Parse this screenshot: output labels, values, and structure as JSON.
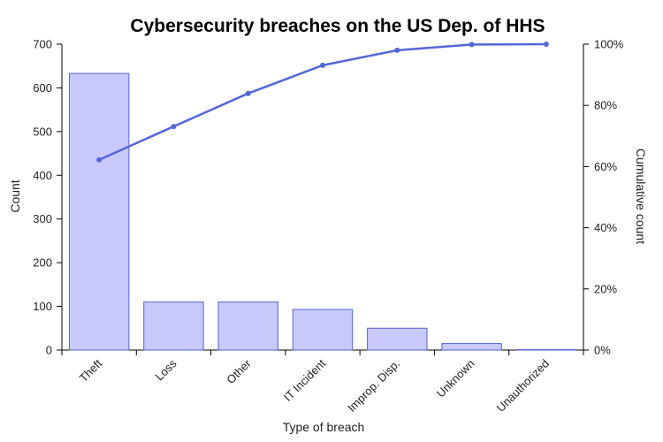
{
  "chart_data": {
    "type": "bar",
    "title": "Cybersecurity breaches on the US Dep. of HHS",
    "xlabel": "Type of breach",
    "ylabel": "Count",
    "y2label": "Cumulative count",
    "categories": [
      "Theft",
      "Loss",
      "Other",
      "IT Incident",
      "Improp. Disp.",
      "Unknown",
      "Unauthorized"
    ],
    "series": [
      {
        "type": "bar",
        "values": [
          633,
          110,
          110,
          93,
          50,
          15,
          1
        ]
      },
      {
        "type": "line",
        "axis": "right",
        "values": [
          0.622,
          0.731,
          0.839,
          0.931,
          0.98,
          0.999,
          1.0
        ]
      }
    ],
    "ylim": [
      0,
      700
    ],
    "y_ticks": [
      0,
      100,
      200,
      300,
      400,
      500,
      600,
      700
    ],
    "y2lim": [
      0,
      1
    ],
    "y2_ticks": [
      "0%",
      "20%",
      "40%",
      "60%",
      "80%",
      "100%"
    ],
    "colors": {
      "bar_fill": "#c8c8fa",
      "bar_stroke": "#5566d6",
      "line": "#5566d6"
    },
    "grid": false,
    "legend": "none"
  }
}
